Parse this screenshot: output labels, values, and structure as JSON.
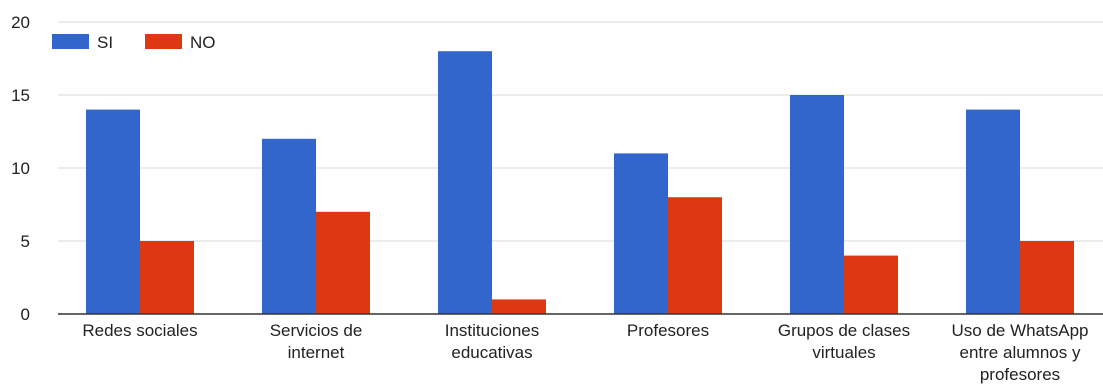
{
  "chart_data": {
    "type": "bar",
    "title": "",
    "xlabel": "",
    "ylabel": "",
    "ylim": [
      0,
      20
    ],
    "yticks": [
      0,
      5,
      10,
      15,
      20
    ],
    "grid": true,
    "legend_position": "top-left",
    "categories": [
      [
        "Redes sociales"
      ],
      [
        "Servicios de",
        "internet"
      ],
      [
        "Instituciones",
        "educativas"
      ],
      [
        "Profesores"
      ],
      [
        "Grupos de clases",
        "virtuales"
      ],
      [
        "Uso de WhatsApp",
        "entre alumnos y",
        "profesores"
      ]
    ],
    "series": [
      {
        "name": "SI",
        "color": "#3366cc",
        "values": [
          14,
          12,
          18,
          11,
          15,
          14
        ]
      },
      {
        "name": "NO",
        "color": "#dc3912",
        "values": [
          5,
          7,
          1,
          8,
          4,
          5
        ]
      }
    ]
  }
}
